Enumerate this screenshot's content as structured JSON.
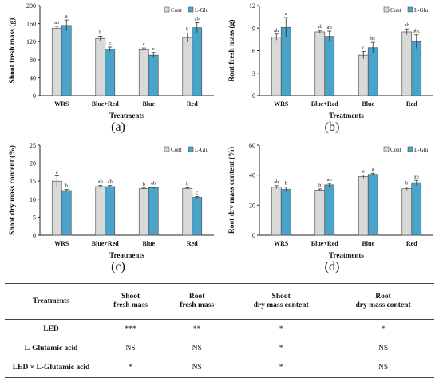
{
  "legend_labels": [
    "Cont",
    "L-Glu"
  ],
  "colors": {
    "cont": "#d9d9d9",
    "lglu": "#4aa3c8",
    "edge": "#555555"
  },
  "chart_data": [
    {
      "type": "bar",
      "panel": "(a)",
      "categories": [
        "WRS",
        "Blue+Red",
        "Blue",
        "Red"
      ],
      "xlabel": "Treatments",
      "ylabel": "Shoot fresh mass (g)",
      "ylim": [
        0,
        200
      ],
      "yticks": [
        0,
        40,
        80,
        120,
        160,
        200
      ],
      "series": [
        {
          "name": "Cont",
          "values": [
            150,
            127,
            102,
            129
          ],
          "errors": [
            4,
            5,
            4,
            10
          ],
          "letters": [
            "ab",
            "b",
            "c",
            "b"
          ]
        },
        {
          "name": "L-Glu",
          "values": [
            156,
            103,
            90,
            151
          ],
          "errors": [
            12,
            5,
            6,
            11
          ],
          "letters": [
            "a",
            "c",
            "c",
            "ab"
          ]
        }
      ],
      "legend": "top-right"
    },
    {
      "type": "bar",
      "panel": "(b)",
      "categories": [
        "WRS",
        "Blue+Red",
        "Blue",
        "Red"
      ],
      "xlabel": "Treatments",
      "ylabel": "Root fresh mass (g)",
      "ylim": [
        0,
        12
      ],
      "yticks": [
        0,
        3,
        6,
        9,
        12
      ],
      "series": [
        {
          "name": "Cont",
          "values": [
            7.8,
            8.5,
            5.4,
            8.5
          ],
          "errors": [
            0.4,
            0.2,
            0.5,
            0.4
          ],
          "letters": [
            "ab",
            "ab",
            "c",
            "ab"
          ]
        },
        {
          "name": "L-Glu",
          "values": [
            9.1,
            7.9,
            6.4,
            7.2
          ],
          "errors": [
            1.3,
            0.7,
            0.7,
            0.9
          ],
          "letters": [
            "a",
            "ab",
            "bc",
            "abc"
          ]
        }
      ],
      "legend": "top-right"
    },
    {
      "type": "bar",
      "panel": "(c)",
      "categories": [
        "WRS",
        "Blue+Red",
        "Blue",
        "Red"
      ],
      "xlabel": "Treatments",
      "ylabel": "Shoot dry mass content (%)",
      "ylim": [
        0,
        25
      ],
      "yticks": [
        0,
        5,
        10,
        15,
        20,
        25
      ],
      "series": [
        {
          "name": "Cont",
          "values": [
            15.0,
            13.5,
            12.9,
            13.0
          ],
          "errors": [
            1.5,
            0.3,
            0.2,
            0.2
          ],
          "letters": [
            "a",
            "ab",
            "b",
            "b"
          ]
        },
        {
          "name": "L-Glu",
          "values": [
            12.4,
            13.5,
            13.2,
            10.5
          ],
          "errors": [
            0.3,
            0.3,
            0.2,
            0.2
          ],
          "letters": [
            "b",
            "ab",
            "ab",
            "c"
          ]
        }
      ],
      "legend": "top-right"
    },
    {
      "type": "bar",
      "panel": "(d)",
      "categories": [
        "WRS",
        "Blue+Red",
        "Blue",
        "Red"
      ],
      "xlabel": "Treatments",
      "ylabel": "Root dry mass content (%)",
      "ylim": [
        0,
        60
      ],
      "yticks": [
        0,
        20,
        40,
        60
      ],
      "series": [
        {
          "name": "Cont",
          "values": [
            32,
            30,
            39,
            31
          ],
          "errors": [
            1,
            0.8,
            1,
            1
          ],
          "letters": [
            "ab",
            "b",
            "a",
            "b"
          ]
        },
        {
          "name": "L-Glu",
          "values": [
            30.5,
            33.5,
            40.5,
            35
          ],
          "errors": [
            1.5,
            1,
            0.8,
            1.5
          ],
          "letters": [
            "b",
            "ab",
            "a",
            "ab"
          ]
        }
      ],
      "legend": "top-right"
    }
  ],
  "stats_table": {
    "header": {
      "treatments": "Treatments",
      "c1": [
        "Shoot",
        "fresh mass"
      ],
      "c2": [
        "Root",
        "fresh mass"
      ],
      "c3": [
        "Shoot",
        "dry mass content"
      ],
      "c4": [
        "Root",
        "dry mass content"
      ]
    },
    "rows": [
      {
        "label": "LED",
        "values": [
          "***",
          "**",
          "*",
          "*"
        ]
      },
      {
        "label": "L-Glutamic acid",
        "values": [
          "NS",
          "NS",
          "*",
          "NS"
        ]
      },
      {
        "label": "LED × L-Glutamic acid",
        "values": [
          "*",
          "NS",
          "*",
          "NS"
        ]
      }
    ]
  }
}
